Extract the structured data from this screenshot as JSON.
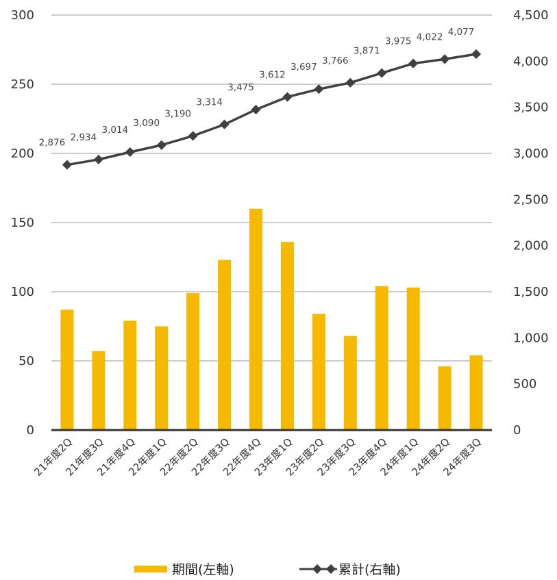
{
  "chart_data": {
    "type": "bar+line",
    "categories": [
      "21年度2Q",
      "21年度3Q",
      "21年度4Q",
      "22年度1Q",
      "22年度2Q",
      "22年度3Q",
      "22年度4Q",
      "23年度1Q",
      "23年度2Q",
      "23年度3Q",
      "23年度4Q",
      "24年度1Q",
      "24年度2Q",
      "24年度3Q"
    ],
    "series": [
      {
        "name": "期間(左軸)",
        "type": "bar",
        "axis": "left",
        "color": "#F5BA00",
        "values": [
          87,
          57,
          79,
          75,
          99,
          123,
          160,
          136,
          84,
          68,
          104,
          103,
          46,
          54
        ]
      },
      {
        "name": "累計(右軸)",
        "type": "line",
        "axis": "right",
        "color": "#404040",
        "values": [
          2876,
          2934,
          3014,
          3090,
          3190,
          3314,
          3475,
          3612,
          3697,
          3766,
          3871,
          3975,
          4022,
          4077
        ],
        "data_labels": [
          "2,876",
          "2,934",
          "3,014",
          "3,090",
          "3,190",
          "3,314",
          "3,475",
          "3,612",
          "3,697",
          "3,766",
          "3,871",
          "3,975",
          "4,022",
          "4,077"
        ]
      }
    ],
    "left_axis": {
      "ylim": [
        0,
        300
      ],
      "ticks": [
        0,
        50,
        100,
        150,
        200,
        250,
        300
      ],
      "tick_labels": [
        "0",
        "50",
        "100",
        "150",
        "200",
        "250",
        "300"
      ]
    },
    "right_axis": {
      "ylim": [
        0,
        4500
      ],
      "ticks": [
        0,
        500,
        1000,
        1500,
        2000,
        2500,
        3000,
        3500,
        4000,
        4500
      ],
      "tick_labels": [
        "0",
        "500",
        "1,000",
        "1,500",
        "2,000",
        "2,500",
        "3,000",
        "3,500",
        "4,000",
        "4,500"
      ]
    },
    "grid": true,
    "legend": {
      "position": "bottom",
      "entries": [
        "期間(左軸)",
        "累計(右軸)"
      ]
    }
  }
}
